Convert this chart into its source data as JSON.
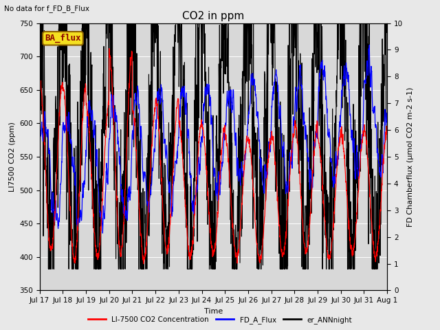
{
  "title": "CO2 in ppm",
  "top_left_text": "No data for f_FD_B_Flux",
  "legend_box_label": "BA_flux",
  "xlabel": "Time",
  "ylabel_left": "LI7500 CO2 (ppm)",
  "ylabel_right": "FD Chamberflux (μmol CO2 m-2 s-1)",
  "ylim_left": [
    350,
    750
  ],
  "ylim_right": [
    0.0,
    10.0
  ],
  "yticks_left": [
    350,
    400,
    450,
    500,
    550,
    600,
    650,
    700,
    750
  ],
  "yticks_right": [
    0.0,
    1.0,
    2.0,
    3.0,
    4.0,
    5.0,
    6.0,
    7.0,
    8.0,
    9.0,
    10.0
  ],
  "xtick_labels": [
    "Jul 17",
    "Jul 18",
    "Jul 19",
    "Jul 20",
    "Jul 21",
    "Jul 22",
    "Jul 23",
    "Jul 24",
    "Jul 25",
    "Jul 26",
    "Jul 27",
    "Jul 28",
    "Jul 29",
    "Jul 30",
    "Jul 31",
    "Aug 1"
  ],
  "num_points": 1500,
  "color_red": "#ff0000",
  "color_blue": "#0000ff",
  "color_black": "#000000",
  "plot_bg_color": "#d8d8d8",
  "fig_bg_color": "#e8e8e8",
  "legend_entries": [
    "LI-7500 CO2 Concentration",
    "FD_A_Flux",
    "er_ANNnight"
  ],
  "legend_colors": [
    "#ff0000",
    "#0000ff",
    "#000000"
  ],
  "title_fontsize": 11,
  "label_fontsize": 8,
  "tick_fontsize": 7.5,
  "linewidth_red": 0.9,
  "linewidth_blue": 0.9,
  "linewidth_black": 0.8
}
